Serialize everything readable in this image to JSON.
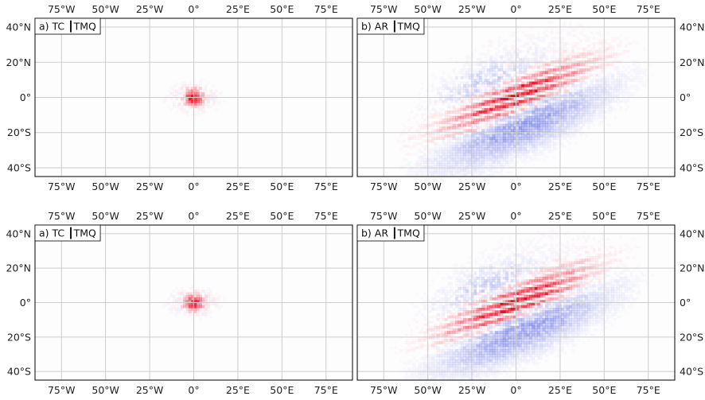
{
  "chart_data": [
    {
      "type": "heatmap",
      "panel_label": "a) TC ┃TMQ",
      "field": "tc",
      "xlim": [
        -90,
        90
      ],
      "ylim": [
        -45,
        45
      ],
      "xticks": [
        -75,
        -50,
        -25,
        0,
        25,
        50,
        75
      ],
      "xtick_labels": [
        "75°W",
        "50°W",
        "25°W",
        "0°",
        "25°E",
        "50°E",
        "75°E"
      ],
      "yticks": [
        40,
        20,
        0,
        -20,
        -40
      ],
      "ytick_labels": [
        "40°N",
        "20°N",
        "0°",
        "20°S",
        "40°S"
      ],
      "ytick_side": "left",
      "grid": true
    },
    {
      "type": "heatmap",
      "panel_label": "b) AR ┃TMQ",
      "field": "ar",
      "xlim": [
        -90,
        90
      ],
      "ylim": [
        -45,
        45
      ],
      "xticks": [
        -75,
        -50,
        -25,
        0,
        25,
        50,
        75
      ],
      "xtick_labels": [
        "75°W",
        "50°W",
        "25°W",
        "0°",
        "25°E",
        "50°E",
        "75°E"
      ],
      "yticks": [
        40,
        20,
        0,
        -20,
        -40
      ],
      "ytick_labels": [
        "40°N",
        "20°N",
        "0°",
        "20°S",
        "40°S"
      ],
      "ytick_side": "right",
      "grid": true
    },
    {
      "type": "heatmap",
      "panel_label": "a) TC ┃TMQ",
      "field": "tc",
      "xlim": [
        -90,
        90
      ],
      "ylim": [
        -45,
        45
      ],
      "xticks": [
        -75,
        -50,
        -25,
        0,
        25,
        50,
        75
      ],
      "xtick_labels": [
        "75°W",
        "50°W",
        "25°W",
        "0°",
        "25°E",
        "50°E",
        "75°E"
      ],
      "yticks": [
        40,
        20,
        0,
        -20,
        -40
      ],
      "ytick_labels": [
        "40°N",
        "20°N",
        "0°",
        "20°S",
        "40°S"
      ],
      "ytick_side": "left",
      "grid": true
    },
    {
      "type": "heatmap",
      "panel_label": "b) AR ┃TMQ",
      "field": "ar",
      "xlim": [
        -90,
        90
      ],
      "ylim": [
        -45,
        45
      ],
      "xticks": [
        -75,
        -50,
        -25,
        0,
        25,
        50,
        75
      ],
      "xtick_labels": [
        "75°W",
        "50°W",
        "25°W",
        "0°",
        "25°E",
        "50°E",
        "75°E"
      ],
      "yticks": [
        40,
        20,
        0,
        -20,
        -40
      ],
      "ytick_labels": [
        "40°N",
        "20°N",
        "0°",
        "20°S",
        "40°S"
      ],
      "ytick_side": "right",
      "grid": true
    }
  ],
  "colors": {
    "positive": "#e8001a",
    "negative": "#3b4cdb",
    "grid": "#cccccc",
    "frame": "#000000"
  }
}
